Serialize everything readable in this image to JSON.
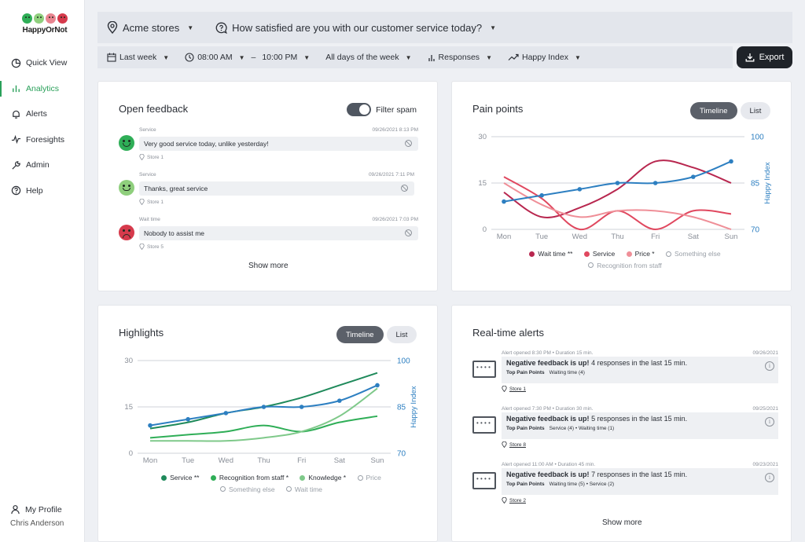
{
  "brand": {
    "name": "HappyOrNot",
    "face_colors": [
      "#2fae57",
      "#8fcf7d",
      "#e88590",
      "#d63a4c"
    ]
  },
  "sidebar": {
    "items": [
      {
        "label": "Quick View",
        "icon": "pie-chart-icon",
        "active": false
      },
      {
        "label": "Analytics",
        "icon": "bar-chart-icon",
        "active": true
      },
      {
        "label": "Alerts",
        "icon": "bell-icon",
        "active": false
      },
      {
        "label": "Foresights",
        "icon": "trend-icon",
        "active": false
      },
      {
        "label": "Admin",
        "icon": "wrench-icon",
        "active": false
      },
      {
        "label": "Help",
        "icon": "help-icon",
        "active": false
      }
    ],
    "profile_label": "My Profile",
    "user_name": "Chris Anderson"
  },
  "topbar": {
    "store": "Acme stores",
    "question": "How satisfied are you with our customer service today?"
  },
  "filters": {
    "period": "Last week",
    "time_from": "08:00 AM",
    "time_to": "10:00 PM",
    "days": "All days of the week",
    "metric": "Responses",
    "index": "Happy Index",
    "export_label": "Export"
  },
  "open_feedback": {
    "title": "Open feedback",
    "toggle_label": "Filter spam",
    "show_more": "Show more",
    "entries": [
      {
        "category": "Service",
        "date": "09/26/2021 8:13 PM",
        "text": "Very good service today, unlike yesterday!",
        "store": "Store 1",
        "face": "very-happy",
        "color": "#2fae57"
      },
      {
        "category": "Service",
        "date": "09/26/2021 7:11 PM",
        "text": "Thanks, great service",
        "store": "Store 1",
        "face": "happy",
        "color": "#8fcf7d"
      },
      {
        "category": "Wait time",
        "date": "09/26/2021 7:03 PM",
        "text": "Nobody to assist me",
        "store": "Store 5",
        "face": "very-unhappy",
        "color": "#d63a4c"
      }
    ]
  },
  "pain_points": {
    "title": "Pain points",
    "seg_timeline": "Timeline",
    "seg_list": "List",
    "right_axis_label": "Happy Index",
    "legend": [
      {
        "label": "Wait time **",
        "color": "#b8274f",
        "hollow": false
      },
      {
        "label": "Service",
        "color": "#e0485f",
        "hollow": false
      },
      {
        "label": "Price *",
        "color": "#ef8f98",
        "hollow": false
      },
      {
        "label": "Something else",
        "color": "#9aa0a8",
        "hollow": true
      },
      {
        "label": "Recognition from staff",
        "color": "#9aa0a8",
        "hollow": true
      }
    ]
  },
  "highlights": {
    "title": "Highlights",
    "seg_timeline": "Timeline",
    "seg_list": "List",
    "right_axis_label": "Happy Index",
    "legend": [
      {
        "label": "Service **",
        "color": "#1f8a5b",
        "hollow": false
      },
      {
        "label": "Recognition from staff *",
        "color": "#2fae57",
        "hollow": false
      },
      {
        "label": "Knowledge *",
        "color": "#7fc98a",
        "hollow": false
      },
      {
        "label": "Price",
        "color": "#9aa0a8",
        "hollow": true
      },
      {
        "label": "Something else",
        "color": "#9aa0a8",
        "hollow": true
      },
      {
        "label": "Wait time",
        "color": "#9aa0a8",
        "hollow": true
      }
    ]
  },
  "chart_data": [
    {
      "type": "line",
      "title": "Pain points",
      "categories": [
        "Mon",
        "Tue",
        "Wed",
        "Thu",
        "Fri",
        "Sat",
        "Sun"
      ],
      "ylim": [
        0,
        30
      ],
      "yticks": [
        "0",
        "15",
        "30"
      ],
      "y2lim": [
        70,
        100
      ],
      "y2ticks": [
        "70",
        "85",
        "100"
      ],
      "y2label": "Happy Index",
      "series": [
        {
          "name": "Wait time **",
          "color": "#b8274f",
          "values": [
            12,
            4,
            7,
            13,
            22,
            20,
            15
          ]
        },
        {
          "name": "Service",
          "color": "#e0485f",
          "values": [
            17,
            10,
            0,
            6,
            0,
            6,
            5
          ]
        },
        {
          "name": "Price *",
          "color": "#ef8f98",
          "values": [
            15,
            8,
            4,
            6,
            6,
            4,
            0
          ]
        },
        {
          "name": "Happy Index",
          "color": "#2d7fc1",
          "axis": "right",
          "markers": true,
          "values": [
            79,
            81,
            83,
            85,
            85,
            87,
            92
          ]
        }
      ]
    },
    {
      "type": "line",
      "title": "Highlights",
      "categories": [
        "Mon",
        "Tue",
        "Wed",
        "Thu",
        "Fri",
        "Sat",
        "Sun"
      ],
      "ylim": [
        0,
        30
      ],
      "yticks": [
        "0",
        "15",
        "30"
      ],
      "y2lim": [
        70,
        100
      ],
      "y2ticks": [
        "70",
        "85",
        "100"
      ],
      "y2label": "Happy Index",
      "series": [
        {
          "name": "Service **",
          "color": "#1f8a5b",
          "values": [
            8,
            10,
            13,
            15,
            18,
            22,
            26
          ]
        },
        {
          "name": "Recognition from staff *",
          "color": "#2fae57",
          "values": [
            5,
            6,
            7,
            9,
            7,
            10,
            12
          ]
        },
        {
          "name": "Knowledge *",
          "color": "#7fc98a",
          "values": [
            4,
            4,
            4,
            5,
            7,
            12,
            21
          ]
        },
        {
          "name": "Happy Index",
          "color": "#2d7fc1",
          "axis": "right",
          "markers": true,
          "values": [
            79,
            81,
            83,
            85,
            85,
            87,
            92
          ]
        }
      ]
    }
  ],
  "alerts": {
    "title": "Real-time alerts",
    "show_more": "Show more",
    "items": [
      {
        "meta": "Alert opened 8:30 PM • Duration 15 min.",
        "date": "09/26/2021",
        "headline": "Negative feedback is up!",
        "detail": "4 responses in the last 15 min.",
        "tpp_label": "Top Pain Points",
        "tpp": "Waiting time (4)",
        "store": "Store 1"
      },
      {
        "meta": "Alert opened 7:30 PM • Duration 30 min.",
        "date": "09/25/2021",
        "headline": "Negative feedback is up!",
        "detail": "5 responses in the last 15 min.",
        "tpp_label": "Top Pain Points",
        "tpp": "Service (4) • Waiting time (1)",
        "store": "Store 8"
      },
      {
        "meta": "Alert opened 11:00 AM • Duration 45 min.",
        "date": "09/23/2021",
        "headline": "Negative feedback is up!",
        "detail": "7 responses in the last 15 min.",
        "tpp_label": "Top Pain Points",
        "tpp": "Waiting time (5) • Service (2)",
        "store": "Store 2"
      }
    ]
  }
}
